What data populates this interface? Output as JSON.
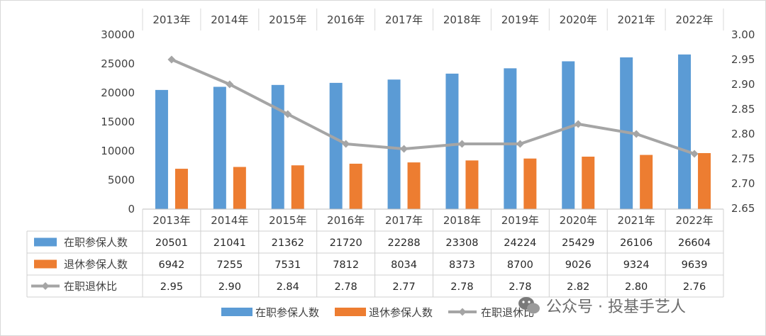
{
  "chart_data": {
    "type": "bar",
    "categories": [
      "2013年",
      "2014年",
      "2015年",
      "2016年",
      "2017年",
      "2018年",
      "2019年",
      "2020年",
      "2021年",
      "2022年"
    ],
    "series": [
      {
        "name": "在职参保人数",
        "type": "bar",
        "axis": "left",
        "color": "#5b9bd5",
        "values": [
          20501,
          21041,
          21362,
          21720,
          22288,
          23308,
          24224,
          25429,
          26106,
          26604
        ]
      },
      {
        "name": "退休参保人数",
        "type": "bar",
        "axis": "left",
        "color": "#ed7d31",
        "values": [
          6942,
          7255,
          7531,
          7812,
          8034,
          8373,
          8700,
          9026,
          9324,
          9639
        ]
      },
      {
        "name": "在职退休比",
        "type": "line",
        "axis": "right",
        "color": "#a5a5a5",
        "values": [
          2.95,
          2.9,
          2.84,
          2.78,
          2.77,
          2.78,
          2.78,
          2.82,
          2.8,
          2.76
        ]
      }
    ],
    "table_values": [
      [
        "20501",
        "21041",
        "21362",
        "21720",
        "22288",
        "23308",
        "24224",
        "25429",
        "26106",
        "26604"
      ],
      [
        "6942",
        "7255",
        "7531",
        "7812",
        "8034",
        "8373",
        "8700",
        "9026",
        "9324",
        "9639"
      ],
      [
        "2.95",
        "2.90",
        "2.84",
        "2.78",
        "2.77",
        "2.78",
        "2.78",
        "2.82",
        "2.80",
        "2.76"
      ]
    ],
    "ylim": [
      0,
      30000
    ],
    "y_ticks": [
      "0",
      "5000",
      "10000",
      "15000",
      "20000",
      "25000",
      "30000"
    ],
    "y2lim": [
      2.65,
      3.0
    ],
    "y2_ticks": [
      "2.65",
      "2.70",
      "2.75",
      "2.80",
      "2.85",
      "2.90",
      "2.95",
      "3.00"
    ],
    "grid": false,
    "legend_position": "bottom",
    "data_table": true
  },
  "watermark": "公众号 · 投基手艺人"
}
